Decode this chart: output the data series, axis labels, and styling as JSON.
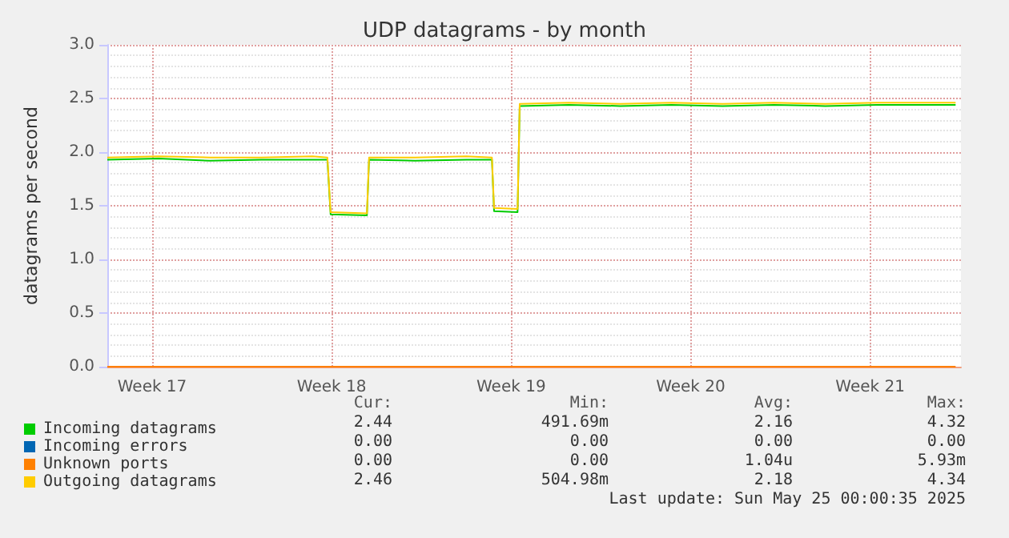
{
  "chart_data": {
    "type": "line",
    "title": "UDP datagrams - by month",
    "ylabel": "datagrams per second",
    "xlim": [
      "2025-04-21T22:00",
      "2025-05-25T05:00"
    ],
    "xticks": [
      {
        "value": "2025-04-23T16:00",
        "label": "Week 17"
      },
      {
        "value": "2025-04-30T16:00",
        "label": "Week 18"
      },
      {
        "value": "2025-05-07T16:00",
        "label": "Week 19"
      },
      {
        "value": "2025-05-14T16:00",
        "label": "Week 20"
      },
      {
        "value": "2025-05-21T16:00",
        "label": "Week 21"
      }
    ],
    "ylim": [
      0,
      3
    ],
    "yticks": [
      {
        "value": 0,
        "label": "0.0"
      },
      {
        "value": 0.5,
        "label": "0.5"
      },
      {
        "value": 1,
        "label": "1.0"
      },
      {
        "value": 1.5,
        "label": "1.5"
      },
      {
        "value": 2,
        "label": "2.0"
      },
      {
        "value": 2.5,
        "label": "2.5"
      },
      {
        "value": 3,
        "label": "3.0"
      }
    ],
    "grid": true,
    "legend": "bottom",
    "marker": "none",
    "line_style": "solid",
    "series": [
      {
        "name": "Incoming datagrams",
        "color": "#00cc00",
        "x": [
          "2025-04-21T22:00",
          "2025-04-23T22:00",
          "2025-04-25T22:00",
          "2025-04-27T22:00",
          "2025-04-29T22:00",
          "2025-04-30T12:00",
          "2025-04-30T15:00",
          "2025-05-02T01:00",
          "2025-05-02T03:00",
          "2025-05-03T22:00",
          "2025-05-05T22:00",
          "2025-05-06T22:00",
          "2025-05-07T00:00",
          "2025-05-07T22:00",
          "2025-05-08T00:00",
          "2025-05-09T22:00",
          "2025-05-11T22:00",
          "2025-05-13T22:00",
          "2025-05-15T22:00",
          "2025-05-17T22:00",
          "2025-05-19T22:00",
          "2025-05-21T22:00",
          "2025-05-25T00:00"
        ],
        "values": [
          1.93,
          1.94,
          1.92,
          1.93,
          1.93,
          1.93,
          1.42,
          1.41,
          1.93,
          1.92,
          1.93,
          1.93,
          1.45,
          1.44,
          2.43,
          2.44,
          2.43,
          2.44,
          2.43,
          2.44,
          2.43,
          2.44,
          2.44
        ]
      },
      {
        "name": "Incoming errors",
        "color": "#0066b3"
      },
      {
        "name": "Unknown ports",
        "color": "#ff8000",
        "x": [
          "2025-04-21T22:00",
          "2025-05-25T00:00"
        ],
        "values": [
          0,
          0
        ]
      },
      {
        "name": "Outgoing datagrams",
        "color": "#ffcc00",
        "x": [
          "2025-04-21T22:00",
          "2025-04-23T22:00",
          "2025-04-25T22:00",
          "2025-04-27T22:00",
          "2025-04-29T22:00",
          "2025-04-30T12:00",
          "2025-04-30T15:00",
          "2025-05-02T01:00",
          "2025-05-02T03:00",
          "2025-05-03T22:00",
          "2025-05-05T22:00",
          "2025-05-06T22:00",
          "2025-05-07T00:00",
          "2025-05-07T22:00",
          "2025-05-08T00:00",
          "2025-05-09T22:00",
          "2025-05-11T22:00",
          "2025-05-13T22:00",
          "2025-05-15T22:00",
          "2025-05-17T22:00",
          "2025-05-19T22:00",
          "2025-05-21T22:00",
          "2025-05-25T00:00"
        ],
        "values": [
          1.95,
          1.96,
          1.95,
          1.95,
          1.96,
          1.95,
          1.44,
          1.43,
          1.95,
          1.95,
          1.96,
          1.95,
          1.48,
          1.47,
          2.45,
          2.46,
          2.45,
          2.46,
          2.45,
          2.46,
          2.45,
          2.46,
          2.46
        ]
      }
    ],
    "annotations": [
      "Cur:",
      "Min:",
      "Avg:",
      "Max:",
      "2.44",
      "491.69m",
      "2.16",
      "4.32",
      "0.00",
      "0.00",
      "0.00",
      "0.00",
      "0.00",
      "0.00",
      "1.04u",
      "5.93m",
      "2.46",
      "504.98m",
      "2.18",
      "4.34",
      "Last update: Sun May 25 00:00:35 2025"
    ]
  }
}
